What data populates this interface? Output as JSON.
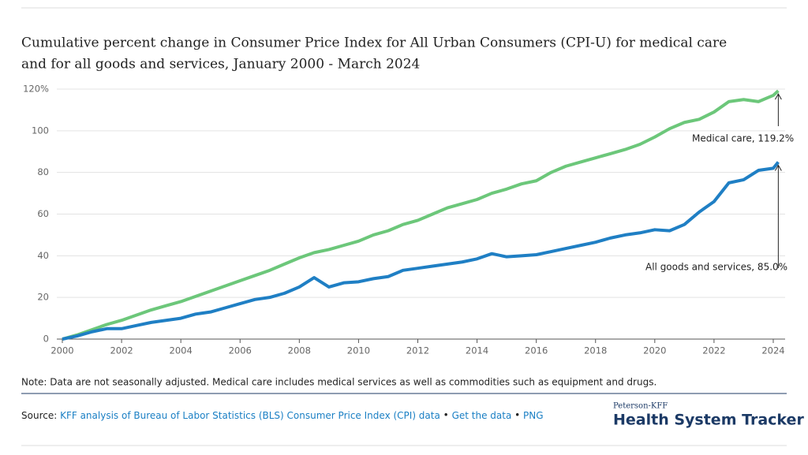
{
  "chart_data": {
    "type": "line",
    "title": "Cumulative percent change in Consumer Price Index for All Urban Consumers (CPI-U) for medical care",
    "title_line2": "and for all goods and services, January 2000 - March 2024",
    "x": [
      2000,
      2000.5,
      2001,
      2001.5,
      2002,
      2002.5,
      2003,
      2003.5,
      2004,
      2004.5,
      2005,
      2005.5,
      2006,
      2006.5,
      2007,
      2007.5,
      2008,
      2008.5,
      2009,
      2009.5,
      2010,
      2010.5,
      2011,
      2011.5,
      2012,
      2012.5,
      2013,
      2013.5,
      2014,
      2014.5,
      2015,
      2015.5,
      2016,
      2016.5,
      2017,
      2017.5,
      2018,
      2018.5,
      2019,
      2019.5,
      2020,
      2020.5,
      2021,
      2021.5,
      2022,
      2022.5,
      2023,
      2023.5,
      2024,
      2024.17
    ],
    "series": [
      {
        "name": "Medical care",
        "color": "#6cc77a",
        "values": [
          0,
          2,
          4.5,
          7,
          9,
          11.5,
          14,
          16,
          18,
          20.5,
          23,
          25.5,
          28,
          30.5,
          33,
          36,
          39,
          41.5,
          43,
          45,
          47,
          50,
          52,
          55,
          57,
          60,
          63,
          65,
          67,
          70,
          72,
          74.5,
          76,
          80,
          83,
          85,
          87,
          89,
          91,
          93.5,
          97,
          101,
          104,
          105.5,
          109,
          114,
          115,
          114,
          117,
          119.2
        ]
      },
      {
        "name": "All goods and services",
        "color": "#1f7fc4",
        "values": [
          0,
          1.5,
          3.5,
          5,
          5,
          6.5,
          8,
          9,
          10,
          12,
          13,
          15,
          17,
          19,
          20,
          22,
          25,
          29.5,
          25,
          27,
          27.5,
          29,
          30,
          33,
          34,
          35,
          36,
          37,
          38.5,
          41,
          39.5,
          40,
          40.5,
          42,
          43.5,
          45,
          46.5,
          48.5,
          50,
          51,
          52.5,
          52,
          55,
          61,
          66,
          75,
          76.5,
          81,
          82,
          85
        ]
      }
    ],
    "annotations": [
      "Medical care, 119.2%",
      "All goods and services, 85.0%"
    ],
    "xlim": [
      2000,
      2024.4
    ],
    "xticks": [
      2000,
      2002,
      2004,
      2006,
      2008,
      2010,
      2012,
      2014,
      2016,
      2018,
      2020,
      2022,
      2024
    ],
    "ylim": [
      0,
      120
    ],
    "yticks": [
      0,
      20,
      40,
      60,
      80,
      100,
      {
        "value": 120,
        "label": "120%"
      }
    ],
    "grid": true
  },
  "note": "Note: Data are not seasonally adjusted. Medical care includes medical services as well as commodities such as equipment and drugs.",
  "source": {
    "label": "Source:",
    "links": [
      "KFF analysis of Bureau of Labor Statistics (BLS) Consumer Price Index (CPI) data",
      "Get the data",
      "PNG"
    ]
  },
  "logo": {
    "top": "Peterson-KFF",
    "main": "Health System Tracker"
  }
}
